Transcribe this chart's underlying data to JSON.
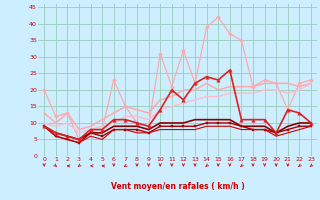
{
  "xlabel": "Vent moyen/en rafales ( km/h )",
  "xlim": [
    -0.5,
    23.5
  ],
  "ylim": [
    0,
    46
  ],
  "yticks": [
    0,
    5,
    10,
    15,
    20,
    25,
    30,
    35,
    40,
    45
  ],
  "xticks": [
    0,
    1,
    2,
    3,
    4,
    5,
    6,
    7,
    8,
    9,
    10,
    11,
    12,
    13,
    14,
    15,
    16,
    17,
    18,
    19,
    20,
    21,
    22,
    23
  ],
  "bg_color": "#cceeff",
  "grid_color": "#99ccbb",
  "series": [
    {
      "x": [
        0,
        1,
        2,
        3,
        4,
        5,
        6,
        7,
        8,
        9,
        10,
        11,
        12,
        13,
        14,
        15,
        16,
        17,
        18,
        19,
        20,
        21,
        22,
        23
      ],
      "y": [
        20,
        12,
        13,
        5,
        8,
        8,
        23,
        15,
        10,
        9,
        31,
        21,
        32,
        22,
        39,
        42,
        37,
        35,
        21,
        23,
        22,
        14,
        22,
        23
      ],
      "color": "#ffaaaa",
      "lw": 0.9,
      "marker": "D",
      "ms": 2.0,
      "zorder": 2
    },
    {
      "x": [
        0,
        1,
        2,
        3,
        4,
        5,
        6,
        7,
        8,
        9,
        10,
        11,
        12,
        13,
        14,
        15,
        16,
        17,
        18,
        19,
        20,
        21,
        22,
        23
      ],
      "y": [
        13,
        10,
        13,
        8,
        9,
        11,
        13,
        15,
        14,
        13,
        17,
        18,
        20,
        20,
        22,
        20,
        21,
        21,
        21,
        22,
        22,
        22,
        21,
        22
      ],
      "color": "#ffaaaa",
      "lw": 1.1,
      "marker": null,
      "ms": 0,
      "zorder": 2
    },
    {
      "x": [
        0,
        1,
        2,
        3,
        4,
        5,
        6,
        7,
        8,
        9,
        10,
        11,
        12,
        13,
        14,
        15,
        16,
        17,
        18,
        19,
        20,
        21,
        22,
        23
      ],
      "y": [
        10,
        9,
        10,
        7,
        8,
        9,
        10,
        12,
        12,
        11,
        14,
        15,
        16,
        17,
        18,
        18,
        19,
        19,
        19,
        20,
        20,
        19,
        20,
        22
      ],
      "color": "#ffbbcc",
      "lw": 1.0,
      "marker": null,
      "ms": 0,
      "zorder": 2
    },
    {
      "x": [
        0,
        1,
        2,
        3,
        4,
        5,
        6,
        7,
        8,
        9,
        10,
        11,
        12,
        13,
        14,
        15,
        16,
        17,
        18,
        19,
        20,
        21,
        22,
        23
      ],
      "y": [
        9,
        7,
        6,
        5,
        8,
        8,
        11,
        11,
        10,
        9,
        14,
        20,
        17,
        22,
        24,
        23,
        26,
        11,
        11,
        11,
        7,
        14,
        13,
        10
      ],
      "color": "#dd2222",
      "lw": 1.2,
      "marker": "^",
      "ms": 2.5,
      "zorder": 4
    },
    {
      "x": [
        0,
        1,
        2,
        3,
        4,
        5,
        6,
        7,
        8,
        9,
        10,
        11,
        12,
        13,
        14,
        15,
        16,
        17,
        18,
        19,
        20,
        21,
        22,
        23
      ],
      "y": [
        9,
        7,
        6,
        5,
        7,
        7,
        9,
        9,
        9,
        8,
        10,
        10,
        10,
        11,
        11,
        11,
        11,
        9,
        9,
        9,
        7,
        9,
        10,
        10
      ],
      "color": "#880000",
      "lw": 1.2,
      "marker": null,
      "ms": 0,
      "zorder": 3
    },
    {
      "x": [
        0,
        1,
        2,
        3,
        4,
        5,
        6,
        7,
        8,
        9,
        10,
        11,
        12,
        13,
        14,
        15,
        16,
        17,
        18,
        19,
        20,
        21,
        22,
        23
      ],
      "y": [
        9,
        6,
        5,
        4,
        7,
        6,
        8,
        8,
        8,
        7,
        9,
        9,
        9,
        9,
        10,
        10,
        10,
        9,
        8,
        8,
        7,
        8,
        9,
        9
      ],
      "color": "#aa0000",
      "lw": 1.0,
      "marker": "s",
      "ms": 1.8,
      "zorder": 3
    },
    {
      "x": [
        0,
        1,
        2,
        3,
        4,
        5,
        6,
        7,
        8,
        9,
        10,
        11,
        12,
        13,
        14,
        15,
        16,
        17,
        18,
        19,
        20,
        21,
        22,
        23
      ],
      "y": [
        9,
        6,
        5,
        4,
        6,
        5,
        8,
        8,
        7,
        7,
        8,
        8,
        8,
        8,
        9,
        9,
        9,
        8,
        8,
        8,
        6,
        7,
        8,
        9
      ],
      "color": "#cc0000",
      "lw": 0.8,
      "marker": null,
      "ms": 0,
      "zorder": 3
    }
  ],
  "arrow_angles": [
    180,
    160,
    270,
    200,
    260,
    270,
    180,
    210,
    180,
    180,
    180,
    180,
    180,
    180,
    200,
    180,
    180,
    200,
    180,
    180,
    180,
    180,
    200,
    200
  ],
  "arrow_color": "#cc2222"
}
